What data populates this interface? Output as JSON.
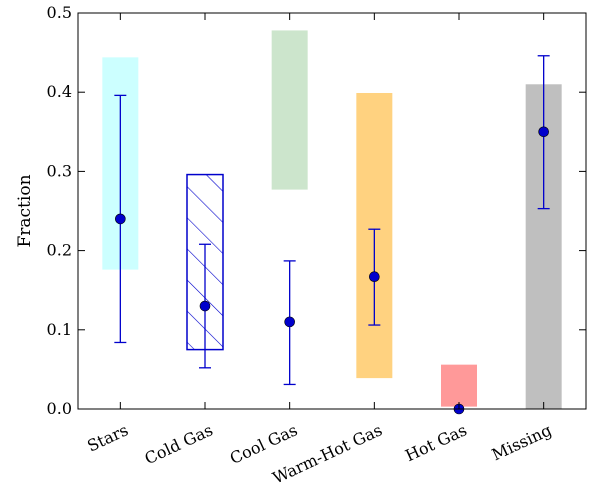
{
  "chart_data": {
    "type": "bar",
    "ylabel": "Fraction",
    "ylim": [
      0.0,
      0.5
    ],
    "yticks": [
      "0.0",
      "0.1",
      "0.2",
      "0.3",
      "0.4",
      "0.5"
    ],
    "categories": [
      "Stars",
      "Cold Gas",
      "Cool Gas",
      "Warm-Hot Gas",
      "Hot Gas",
      "Missing"
    ],
    "ranges": [
      {
        "low": 0.176,
        "high": 0.444,
        "color": "#ccffff",
        "hatched": false
      },
      {
        "low": 0.075,
        "high": 0.296,
        "color": "#ffffff",
        "hatched": true,
        "edge_color": "#0000cc"
      },
      {
        "low": 0.277,
        "high": 0.478,
        "color": "#cce5cc",
        "hatched": false
      },
      {
        "low": 0.039,
        "high": 0.399,
        "color": "#ffd280",
        "hatched": false
      },
      {
        "low": 0.003,
        "high": 0.056,
        "color": "#ff9999",
        "hatched": false
      },
      {
        "low": 0.0,
        "high": 0.41,
        "color": "#bfbfbf",
        "hatched": false
      }
    ],
    "points": [
      {
        "y": 0.24,
        "err_low": 0.084,
        "err_high": 0.396
      },
      {
        "y": 0.13,
        "err_low": 0.052,
        "err_high": 0.208
      },
      {
        "y": 0.11,
        "err_low": 0.031,
        "err_high": 0.187
      },
      {
        "y": 0.167,
        "err_low": 0.106,
        "err_high": 0.227
      },
      {
        "y": 0.0,
        "err_low": 0.0,
        "err_high": 0.0
      },
      {
        "y": 0.35,
        "err_low": 0.253,
        "err_high": 0.446
      }
    ],
    "marker_color": "#0000cc",
    "grid": false
  }
}
